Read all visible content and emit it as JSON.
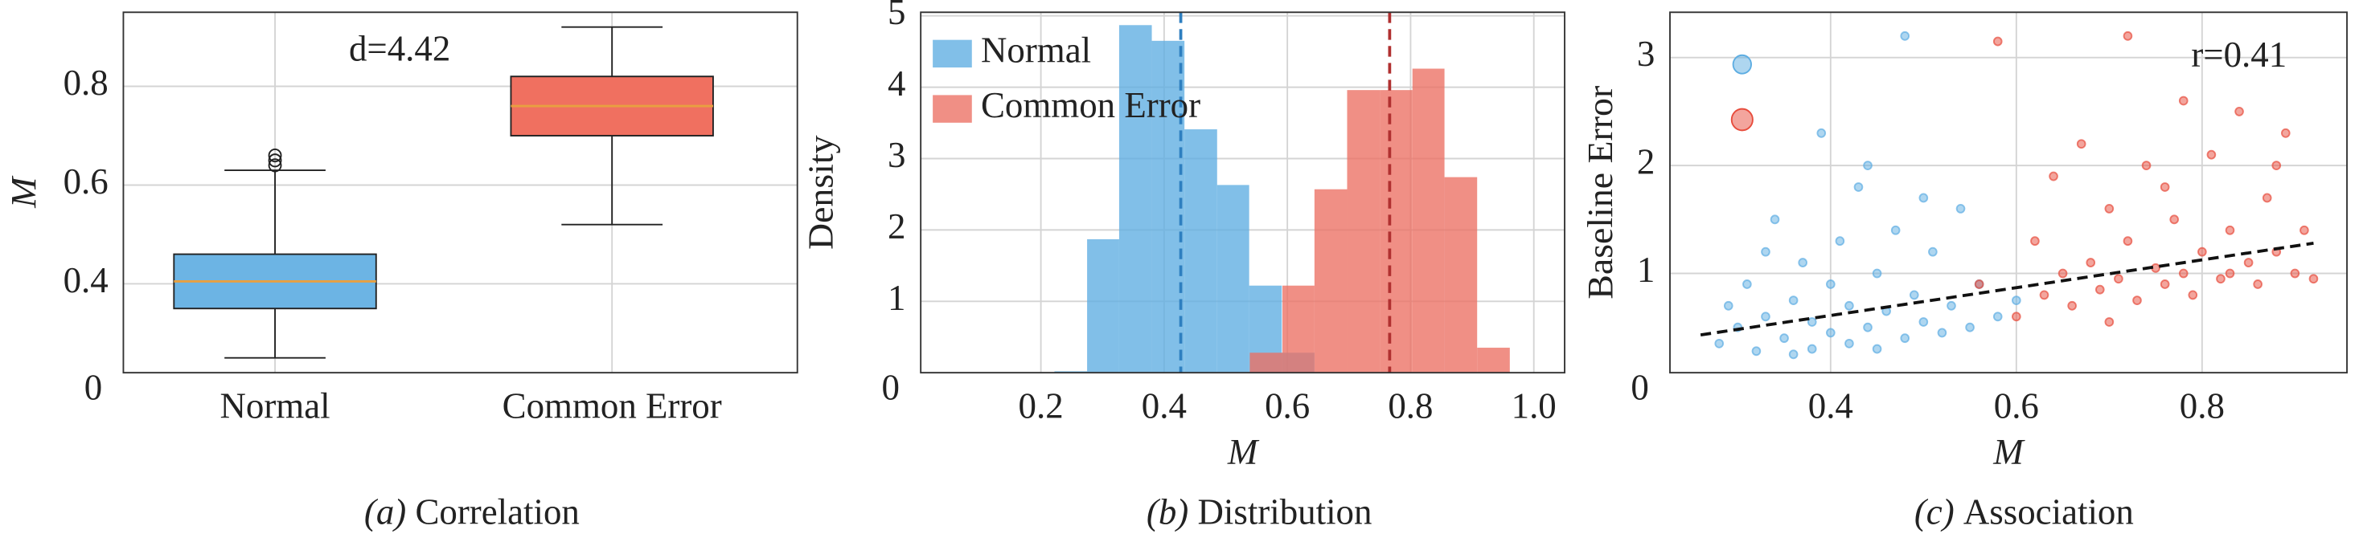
{
  "chart_data": [
    {
      "type": "box",
      "ylabel": "M",
      "corner_label": "0",
      "annotation": "d=4.42",
      "caption_label": "(a)",
      "caption": "Correlation",
      "categories": [
        "Normal",
        "Common Error"
      ],
      "boxes": [
        {
          "color": "#6cb4e4",
          "median_color": "#e8a040",
          "q1": 0.35,
          "median": 0.405,
          "q3": 0.46,
          "whisker_low": 0.25,
          "whisker_high": 0.63,
          "outliers": [
            0.64,
            0.65,
            0.66
          ]
        },
        {
          "color": "#f07060",
          "median_color": "#e8a040",
          "q1": 0.7,
          "median": 0.76,
          "q3": 0.82,
          "whisker_low": 0.52,
          "whisker_high": 0.92,
          "outliers": []
        }
      ],
      "ylim": [
        0.22,
        0.95
      ],
      "yticks": [
        0.4,
        0.6,
        0.8
      ],
      "grid": true
    },
    {
      "type": "histogram",
      "xlabel": "M",
      "ylabel": "Density",
      "corner_label": "0",
      "legend": "upper left",
      "caption_label": "(b)",
      "caption": "Distribution",
      "series": [
        {
          "name": "Normal",
          "color": "#5dade2",
          "mean": 0.427,
          "bins": [
            0.222,
            0.275,
            0.327,
            0.38,
            0.433,
            0.486,
            0.538,
            0.591,
            0.644
          ],
          "values": [
            0.02,
            1.87,
            4.87,
            4.65,
            3.41,
            2.63,
            1.22,
            0.28
          ]
        },
        {
          "name": "Common Error",
          "color": "#ec7063",
          "mean": 0.766,
          "bins": [
            0.539,
            0.592,
            0.644,
            0.697,
            0.75,
            0.803,
            0.855,
            0.908,
            0.961
          ],
          "values": [
            0.28,
            1.22,
            2.57,
            3.96,
            3.96,
            4.26,
            2.74,
            0.35
          ]
        }
      ],
      "xlim": [
        0.005,
        1.05
      ],
      "xticks": [
        0.2,
        0.4,
        0.6,
        0.8,
        {
          "value": 1.0,
          "label": "1.0"
        }
      ],
      "ylim": [
        0,
        5.05
      ],
      "yticks": [
        1,
        2,
        3,
        4,
        5
      ],
      "grid": true
    },
    {
      "type": "scatter",
      "xlabel": "M",
      "ylabel": "Baseline Error",
      "corner_label": "0",
      "annotation": "r=0.41",
      "caption_label": "(c)",
      "caption": "Association",
      "series": [
        {
          "color": "#5dade2",
          "x": [
            0.28,
            0.3,
            0.31,
            0.32,
            0.33,
            0.34,
            0.35,
            0.36,
            0.37,
            0.38,
            0.38,
            0.39,
            0.4,
            0.4,
            0.41,
            0.42,
            0.42,
            0.43,
            0.44,
            0.45,
            0.45,
            0.46,
            0.47,
            0.48,
            0.48,
            0.49,
            0.5,
            0.51,
            0.52,
            0.53,
            0.54,
            0.55,
            0.56,
            0.58,
            0.6,
            0.29,
            0.33,
            0.36,
            0.44,
            0.5
          ],
          "values": [
            0.35,
            0.5,
            0.9,
            0.28,
            0.6,
            1.5,
            0.4,
            0.75,
            1.1,
            0.3,
            0.55,
            2.3,
            0.45,
            0.9,
            1.3,
            0.35,
            0.7,
            1.8,
            0.5,
            1.0,
            0.3,
            0.65,
            1.4,
            0.4,
            3.2,
            0.8,
            0.55,
            1.2,
            0.45,
            0.7,
            1.6,
            0.5,
            0.9,
            0.6,
            0.75,
            0.7,
            1.2,
            0.25,
            2.0,
            1.7
          ]
        },
        {
          "color": "#e74c3c",
          "x": [
            0.56,
            0.58,
            0.6,
            0.62,
            0.63,
            0.64,
            0.65,
            0.66,
            0.67,
            0.68,
            0.69,
            0.7,
            0.71,
            0.72,
            0.72,
            0.73,
            0.74,
            0.75,
            0.76,
            0.77,
            0.78,
            0.78,
            0.79,
            0.8,
            0.81,
            0.82,
            0.83,
            0.84,
            0.85,
            0.86,
            0.87,
            0.88,
            0.89,
            0.9,
            0.91,
            0.92,
            0.7,
            0.76,
            0.83,
            0.88
          ],
          "values": [
            0.9,
            3.15,
            0.6,
            1.3,
            0.8,
            1.9,
            1.0,
            0.7,
            2.2,
            1.1,
            0.85,
            1.6,
            0.95,
            3.2,
            1.3,
            0.75,
            2.0,
            1.05,
            0.9,
            1.5,
            2.6,
            1.0,
            0.8,
            1.2,
            2.1,
            0.95,
            1.4,
            2.5,
            1.1,
            0.9,
            1.7,
            1.2,
            2.3,
            1.0,
            1.4,
            0.95,
            0.55,
            1.8,
            1.0,
            2.0
          ]
        }
      ],
      "trend": {
        "x": [
          0.26,
          0.92
        ],
        "y": [
          0.43,
          1.28
        ]
      },
      "xlim": [
        0.227,
        0.956
      ],
      "xticks": [
        0.4,
        0.6,
        0.8
      ],
      "ylim": [
        0.08,
        3.42
      ],
      "yticks": [
        1,
        2,
        3
      ],
      "grid": true
    }
  ]
}
